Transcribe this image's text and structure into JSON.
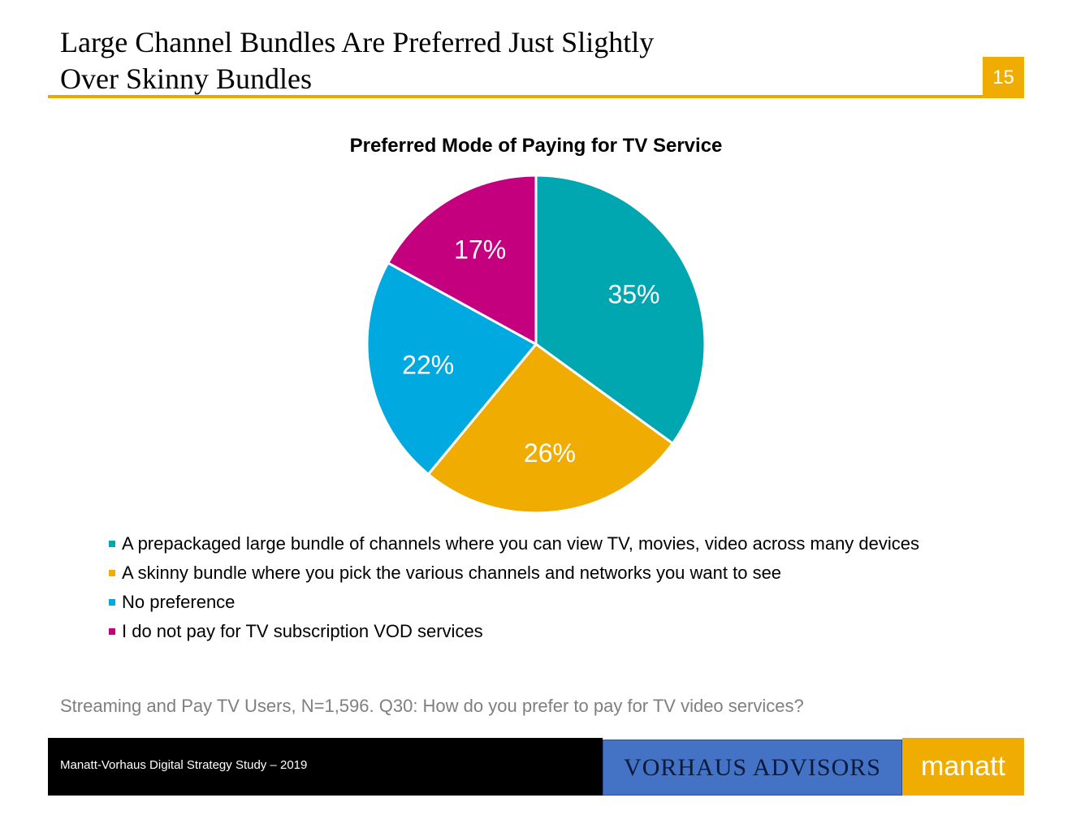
{
  "header": {
    "title_line1": "Large Channel Bundles Are Preferred Just Slightly",
    "title_line2": "Over Skinny Bundles",
    "page_number": "15"
  },
  "chart_data": {
    "type": "pie",
    "title": "Preferred Mode of Paying for TV Service",
    "categories": [
      "A prepackaged large bundle of channels where you can view TV, movies, video across many devices",
      "A skinny bundle where you pick the various channels and networks you want to see",
      "No preference",
      "I do not pay for TV subscription VOD services"
    ],
    "values": [
      35,
      26,
      22,
      17
    ],
    "labels": [
      "35%",
      "26%",
      "22%",
      "17%"
    ],
    "colors": [
      "#00a6b0",
      "#f0ac00",
      "#00a9e0",
      "#c4007f"
    ],
    "legend_position": "bottom"
  },
  "footnote": "Streaming and Pay TV Users, N=1,596. Q30: How do you prefer to pay for TV video services?",
  "footer": {
    "study": "Manatt-Vorhaus Digital Strategy Study – 2019",
    "logo_vorhaus": "VORHAUS ADVISORS",
    "logo_manatt": "manatt"
  }
}
